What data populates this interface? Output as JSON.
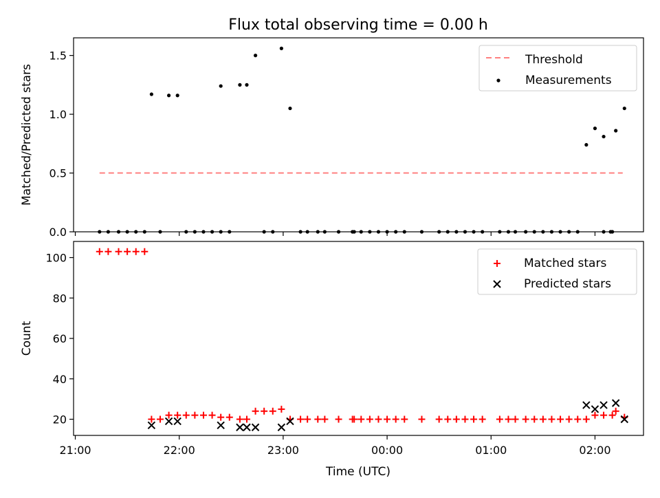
{
  "chart_data": {
    "title": "Flux total observing time = 0.00 h",
    "xlabel": "Time (UTC)",
    "x_tick_labels": [
      "21:00",
      "22:00",
      "23:00",
      "00:00",
      "01:00",
      "02:00"
    ],
    "x_unit": "minutes after 21:00 UTC",
    "xlim": [
      -1,
      328
    ],
    "panels": [
      {
        "id": "ratio",
        "type": "scatter",
        "ylabel": "Matched/Predicted stars",
        "ylim": [
          0,
          1.65
        ],
        "yticks": [
          0.0,
          0.5,
          1.0,
          1.5
        ],
        "ytick_labels": [
          "0.0",
          "0.5",
          "1.0",
          "1.5"
        ],
        "legend": {
          "position": "upper right",
          "entries": [
            {
              "label": "Threshold",
              "marker": "dashed-line",
              "color": "#ff7f7f"
            },
            {
              "label": "Measurements",
              "marker": "dot",
              "color": "#000000"
            }
          ]
        },
        "threshold": {
          "name": "Threshold",
          "y": 0.5,
          "x_range": [
            14,
            316
          ],
          "color": "#ff7f7f"
        },
        "series": [
          {
            "name": "Measurements",
            "color": "#000000",
            "points": [
              [
                14,
                0.0
              ],
              [
                19,
                0.0
              ],
              [
                25,
                0.0
              ],
              [
                30,
                0.0
              ],
              [
                35,
                0.0
              ],
              [
                40,
                0.0
              ],
              [
                44,
                1.17
              ],
              [
                49,
                0.0
              ],
              [
                54,
                1.16
              ],
              [
                59,
                1.16
              ],
              [
                64,
                0.0
              ],
              [
                69,
                0.0
              ],
              [
                74,
                0.0
              ],
              [
                79,
                0.0
              ],
              [
                84,
                0.0
              ],
              [
                84,
                1.24
              ],
              [
                89,
                0.0
              ],
              [
                95,
                1.25
              ],
              [
                99,
                1.25
              ],
              [
                104,
                1.5
              ],
              [
                109,
                0.0
              ],
              [
                114,
                0.0
              ],
              [
                119,
                1.56
              ],
              [
                124,
                1.05
              ],
              [
                130,
                0.0
              ],
              [
                134,
                0.0
              ],
              [
                140,
                0.0
              ],
              [
                144,
                0.0
              ],
              [
                152,
                0.0
              ],
              [
                160,
                0.0
              ],
              [
                161,
                0.0
              ],
              [
                165,
                0.0
              ],
              [
                170,
                0.0
              ],
              [
                175,
                0.0
              ],
              [
                180,
                0.0
              ],
              [
                185,
                0.0
              ],
              [
                190,
                0.0
              ],
              [
                200,
                0.0
              ],
              [
                210,
                0.0
              ],
              [
                215,
                0.0
              ],
              [
                220,
                0.0
              ],
              [
                225,
                0.0
              ],
              [
                230,
                0.0
              ],
              [
                235,
                0.0
              ],
              [
                245,
                0.0
              ],
              [
                250,
                0.0
              ],
              [
                254,
                0.0
              ],
              [
                260,
                0.0
              ],
              [
                265,
                0.0
              ],
              [
                270,
                0.0
              ],
              [
                275,
                0.0
              ],
              [
                280,
                0.0
              ],
              [
                285,
                0.0
              ],
              [
                290,
                0.0
              ],
              [
                295,
                0.74
              ],
              [
                300,
                0.88
              ],
              [
                305,
                0.81
              ],
              [
                305,
                0.0
              ],
              [
                310,
                0.0
              ],
              [
                309,
                0.0
              ],
              [
                312,
                0.86
              ],
              [
                317,
                1.05
              ]
            ]
          }
        ]
      },
      {
        "id": "count",
        "type": "scatter",
        "ylabel": "Count",
        "ylim": [
          12,
          108
        ],
        "yticks": [
          20,
          40,
          60,
          80,
          100
        ],
        "ytick_labels": [
          "20",
          "40",
          "60",
          "80",
          "100"
        ],
        "legend": {
          "position": "upper right",
          "entries": [
            {
              "label": "Matched stars",
              "marker": "plus",
              "color": "#ff0000"
            },
            {
              "label": "Predicted stars",
              "marker": "x",
              "color": "#000000"
            }
          ]
        },
        "series": [
          {
            "name": "Matched stars",
            "marker": "plus",
            "color": "#ff0000",
            "points": [
              [
                14,
                103
              ],
              [
                19,
                103
              ],
              [
                25,
                103
              ],
              [
                30,
                103
              ],
              [
                35,
                103
              ],
              [
                40,
                103
              ],
              [
                44,
                20
              ],
              [
                49,
                20
              ],
              [
                54,
                22
              ],
              [
                59,
                22
              ],
              [
                64,
                22
              ],
              [
                69,
                22
              ],
              [
                74,
                22
              ],
              [
                79,
                22
              ],
              [
                84,
                21
              ],
              [
                89,
                21
              ],
              [
                95,
                20
              ],
              [
                99,
                20
              ],
              [
                104,
                24
              ],
              [
                109,
                24
              ],
              [
                114,
                24
              ],
              [
                119,
                25
              ],
              [
                124,
                20
              ],
              [
                130,
                20
              ],
              [
                134,
                20
              ],
              [
                140,
                20
              ],
              [
                144,
                20
              ],
              [
                152,
                20
              ],
              [
                160,
                20
              ],
              [
                161,
                20
              ],
              [
                165,
                20
              ],
              [
                170,
                20
              ],
              [
                175,
                20
              ],
              [
                180,
                20
              ],
              [
                185,
                20
              ],
              [
                190,
                20
              ],
              [
                200,
                20
              ],
              [
                210,
                20
              ],
              [
                215,
                20
              ],
              [
                220,
                20
              ],
              [
                225,
                20
              ],
              [
                230,
                20
              ],
              [
                235,
                20
              ],
              [
                245,
                20
              ],
              [
                250,
                20
              ],
              [
                254,
                20
              ],
              [
                260,
                20
              ],
              [
                265,
                20
              ],
              [
                270,
                20
              ],
              [
                275,
                20
              ],
              [
                280,
                20
              ],
              [
                285,
                20
              ],
              [
                290,
                20
              ],
              [
                295,
                20
              ],
              [
                300,
                22
              ],
              [
                305,
                22
              ],
              [
                310,
                22
              ],
              [
                312,
                24
              ],
              [
                317,
                21
              ]
            ]
          },
          {
            "name": "Predicted stars",
            "marker": "x",
            "color": "#000000",
            "points": [
              [
                44,
                17
              ],
              [
                54,
                19
              ],
              [
                59,
                19
              ],
              [
                84,
                17
              ],
              [
                95,
                16
              ],
              [
                99,
                16
              ],
              [
                104,
                16
              ],
              [
                119,
                16
              ],
              [
                124,
                19
              ],
              [
                295,
                27
              ],
              [
                300,
                25
              ],
              [
                305,
                27
              ],
              [
                312,
                28
              ],
              [
                317,
                20
              ]
            ]
          }
        ]
      }
    ]
  }
}
